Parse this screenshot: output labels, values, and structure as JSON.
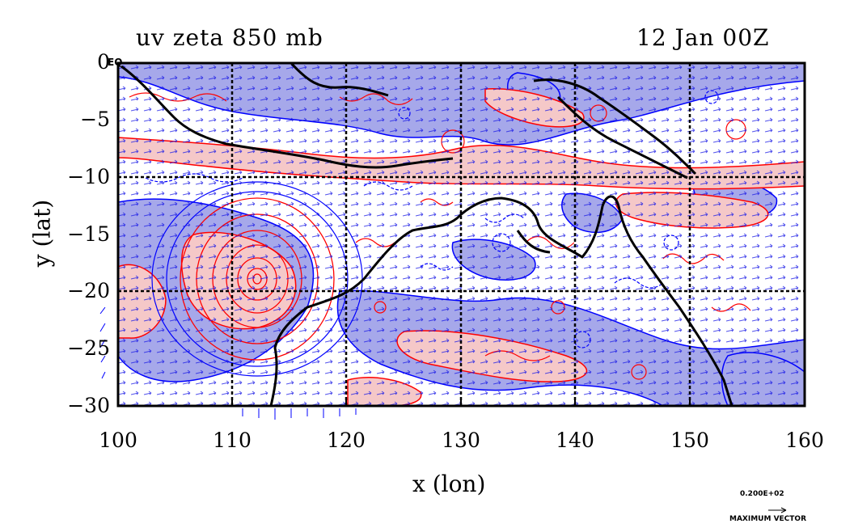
{
  "title": {
    "left": "uv zeta 850 mb",
    "right": "12 Jan 00Z"
  },
  "axes": {
    "xlabel": "x (lon)",
    "ylabel": "y (lat)",
    "xticks": [
      "100",
      "110",
      "120",
      "130",
      "140",
      "150",
      "160"
    ],
    "yticks": [
      "0",
      "−5",
      "−10",
      "−15",
      "−20",
      "−25",
      "−30"
    ],
    "xrange": [
      100,
      160
    ],
    "yrange": [
      -30,
      0
    ],
    "grid": true
  },
  "equator_mark": "EQ",
  "vector_key": {
    "value": "0.200E+02",
    "label": "MAXIMUM VECTOR"
  },
  "colors": {
    "positive_contour": "#ff0000",
    "negative_contour": "#0000ff",
    "positive_fill": "#f5c8c8",
    "negative_fill": "#a6a8ea",
    "vectors": "#0000ff",
    "coastline": "#000000"
  }
}
